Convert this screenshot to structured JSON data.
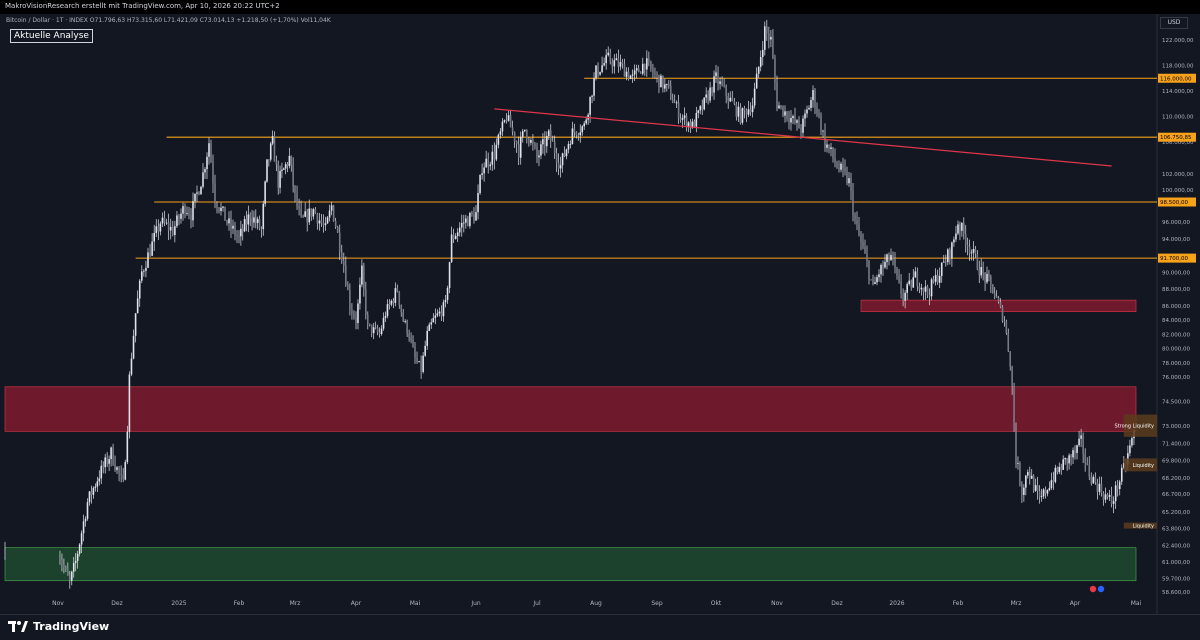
{
  "header": {
    "attribution": "MakroVisionResearch erstellt mit TradingView.com, Apr 10, 2026 20:22 UTC+2"
  },
  "symbol_info": "Bitcoin / Dollar · 1T · INDEX  O71.796,63  H73.315,60  L71.421,09  C73.014,13  +1.218,50 (+1,70%)  Vol11,04K",
  "analysis_label": "Aktuelle Analyse",
  "currency": "USD",
  "brand": "TradingView",
  "colors": {
    "background": "#131722",
    "candle": "#e0e3eb",
    "level_line": "#f7a21b",
    "trendline": "#e0364b",
    "resistance_zone": "#801b2e",
    "support_zone": "#1f4a2f",
    "liquidity_box": "#5c3c1c"
  },
  "chart_data": {
    "type": "candlestick",
    "title": "",
    "ylim": [
      58600,
      125000
    ],
    "x_labels": [
      "Nov",
      "Dez",
      "2025",
      "Feb",
      "Mrz",
      "Apr",
      "Mai",
      "Jun",
      "Jul",
      "Aug",
      "Sep",
      "Okt",
      "Nov",
      "Dez",
      "2026",
      "Feb",
      "Mrz",
      "Apr",
      "Mai"
    ],
    "y_ticks": [
      "122.000,00",
      "118.000,00",
      "114.000,00",
      "110.000,00",
      "106.000,00",
      "102.000,00",
      "100.000,00",
      "96.000,00",
      "94.000,00",
      "90.000,00",
      "88.000,00",
      "86.000,00",
      "84.000,00",
      "82.000,00",
      "80.000,00",
      "78.000,00",
      "76.000,00",
      "74.500,00",
      "73.000,00",
      "71.400,00",
      "69.800,00",
      "68.200,00",
      "66.700,00",
      "65.200,00",
      "63.800,00",
      "62.400,00",
      "61.000,00",
      "59.700,00",
      "58.600,00"
    ],
    "y_tick_values": [
      122000,
      118000,
      114000,
      110000,
      106000,
      102000,
      100000,
      96000,
      94000,
      90000,
      88000,
      86000,
      84000,
      82000,
      80000,
      78000,
      76000,
      74500,
      73000,
      71400,
      69800,
      68200,
      66700,
      65200,
      63800,
      62400,
      61000,
      59700,
      58600
    ],
    "horizontal_levels": [
      {
        "label": "116.000,00",
        "value": 116000,
        "from_month": 8.8
      },
      {
        "label": "106.750,85",
        "value": 106750.85,
        "from_month": 1.8
      },
      {
        "label": "98.500,00",
        "value": 98500,
        "from_month": 1.6
      },
      {
        "label": "91.700,00",
        "value": 91700,
        "from_month": 1.3
      }
    ],
    "trendline": {
      "from": [
        7.3,
        111200
      ],
      "to": [
        17.6,
        103000
      ]
    },
    "zones": [
      {
        "name": "resistance-zone",
        "from_month": 0,
        "to_month": 19.0,
        "y_top": 75400,
        "y_bottom": 72500
      },
      {
        "name": "support-zone",
        "from_month": 0,
        "to_month": 19.0,
        "y_top": 62200,
        "y_bottom": 59500
      },
      {
        "name": "supply-zone",
        "from_month": 13.4,
        "to_month": 19.0,
        "y_top": 86700,
        "y_bottom": 85200
      }
    ],
    "liquidity": [
      {
        "label": "Strong Liquidity",
        "from_month": 17.8,
        "y_top": 73700,
        "y_bottom": 72000
      },
      {
        "label": "Liquidity",
        "from_month": 17.8,
        "y_top": 70000,
        "y_bottom": 68800
      },
      {
        "label": "Liquidity",
        "from_month": 17.8,
        "y_top": 64300,
        "y_bottom": 63800
      }
    ],
    "close_path": [
      [
        0.0,
        62000
      ],
      [
        0.1,
        60500
      ],
      [
        0.2,
        59300
      ],
      [
        0.3,
        61000
      ],
      [
        0.5,
        66000
      ],
      [
        0.7,
        68500
      ],
      [
        0.9,
        70500
      ],
      [
        1.0,
        69000
      ],
      [
        1.1,
        67500
      ],
      [
        1.2,
        76000
      ],
      [
        1.3,
        85000
      ],
      [
        1.4,
        90000
      ],
      [
        1.5,
        92000
      ],
      [
        1.7,
        96000
      ],
      [
        1.9,
        95000
      ],
      [
        2.1,
        98000
      ],
      [
        2.2,
        97000
      ],
      [
        2.4,
        102000
      ],
      [
        2.5,
        106000
      ],
      [
        2.6,
        99000
      ],
      [
        2.8,
        96000
      ],
      [
        3.0,
        94000
      ],
      [
        3.2,
        97000
      ],
      [
        3.4,
        95000
      ],
      [
        3.5,
        103000
      ],
      [
        3.6,
        106000
      ],
      [
        3.7,
        101000
      ],
      [
        3.9,
        104000
      ],
      [
        4.0,
        99000
      ],
      [
        4.1,
        96000
      ],
      [
        4.3,
        97500
      ],
      [
        4.5,
        95000
      ],
      [
        4.6,
        98000
      ],
      [
        4.8,
        91000
      ],
      [
        4.9,
        86000
      ],
      [
        5.0,
        84000
      ],
      [
        5.1,
        90000
      ],
      [
        5.2,
        83000
      ],
      [
        5.4,
        82000
      ],
      [
        5.5,
        85000
      ],
      [
        5.7,
        88000
      ],
      [
        5.8,
        84000
      ],
      [
        5.9,
        82000
      ],
      [
        6.0,
        78500
      ],
      [
        6.1,
        77000
      ],
      [
        6.2,
        82000
      ],
      [
        6.3,
        84000
      ],
      [
        6.5,
        86000
      ],
      [
        6.6,
        94000
      ],
      [
        6.8,
        96000
      ],
      [
        7.0,
        97000
      ],
      [
        7.1,
        103000
      ],
      [
        7.3,
        104500
      ],
      [
        7.5,
        110000
      ],
      [
        7.7,
        105000
      ],
      [
        7.8,
        108000
      ],
      [
        8.0,
        104000
      ],
      [
        8.2,
        107000
      ],
      [
        8.4,
        103000
      ],
      [
        8.6,
        107500
      ],
      [
        8.8,
        108500
      ],
      [
        9.0,
        117000
      ],
      [
        9.2,
        119000
      ],
      [
        9.4,
        118000
      ],
      [
        9.6,
        116000
      ],
      [
        9.8,
        118500
      ],
      [
        10.0,
        116000
      ],
      [
        10.2,
        114000
      ],
      [
        10.4,
        110000
      ],
      [
        10.6,
        108500
      ],
      [
        10.8,
        112000
      ],
      [
        11.0,
        116000
      ],
      [
        11.2,
        113000
      ],
      [
        11.4,
        110000
      ],
      [
        11.6,
        112000
      ],
      [
        11.8,
        123500
      ],
      [
        11.9,
        122000
      ],
      [
        12.0,
        112000
      ],
      [
        12.2,
        110000
      ],
      [
        12.4,
        108000
      ],
      [
        12.6,
        113500
      ],
      [
        12.8,
        106000
      ],
      [
        13.0,
        103000
      ],
      [
        13.2,
        101000
      ],
      [
        13.3,
        96000
      ],
      [
        13.5,
        91000
      ],
      [
        13.6,
        88000
      ],
      [
        13.7,
        90000
      ],
      [
        13.9,
        92000
      ],
      [
        14.0,
        89000
      ],
      [
        14.1,
        87000
      ],
      [
        14.3,
        89500
      ],
      [
        14.5,
        87500
      ],
      [
        14.7,
        90000
      ],
      [
        14.9,
        93000
      ],
      [
        15.0,
        96000
      ],
      [
        15.2,
        93000
      ],
      [
        15.4,
        90000
      ],
      [
        15.6,
        88000
      ],
      [
        15.8,
        84000
      ],
      [
        15.9,
        78000
      ],
      [
        16.0,
        70000
      ],
      [
        16.1,
        67000
      ],
      [
        16.2,
        69000
      ],
      [
        16.4,
        66000
      ],
      [
        16.6,
        68000
      ],
      [
        16.8,
        69500
      ],
      [
        17.0,
        70500
      ],
      [
        17.1,
        71500
      ],
      [
        17.2,
        69000
      ],
      [
        17.3,
        68000
      ],
      [
        17.5,
        66500
      ],
      [
        17.6,
        66000
      ],
      [
        17.8,
        69000
      ],
      [
        18.0,
        73000
      ]
    ]
  }
}
